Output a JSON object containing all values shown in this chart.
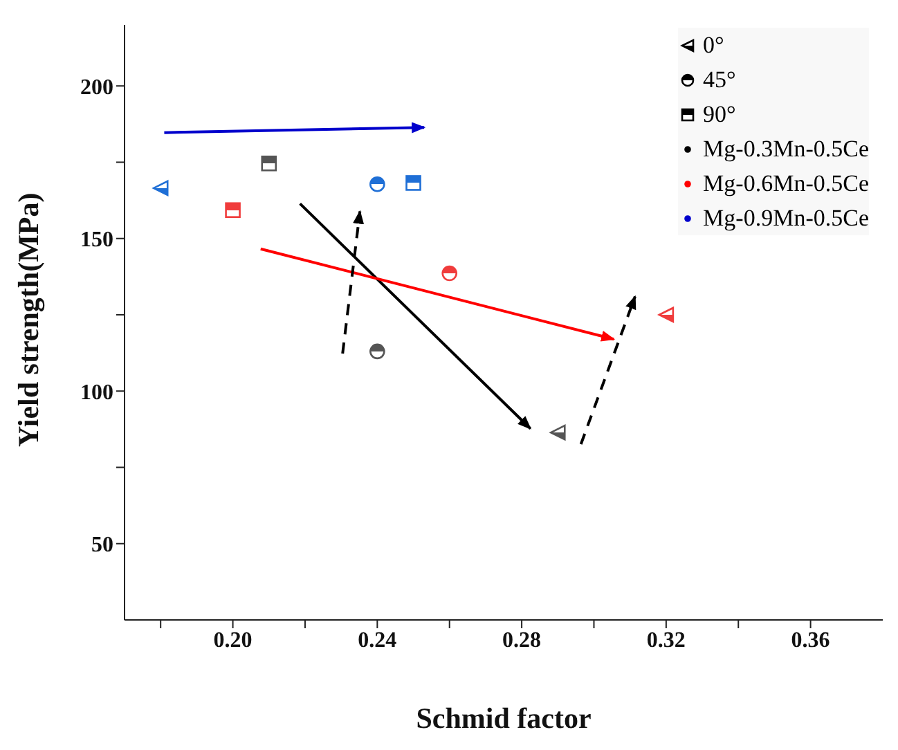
{
  "chart_data": {
    "type": "scatter",
    "xlabel": "Schmid factor",
    "ylabel": "Yield strength(MPa)",
    "xlim": [
      0.17,
      0.38
    ],
    "xticks": [
      {
        "value": 0.18,
        "label": null
      },
      {
        "value": 0.2,
        "label": "0.20"
      },
      {
        "value": 0.22,
        "label": null
      },
      {
        "value": 0.24,
        "label": "0.24"
      },
      {
        "value": 0.26,
        "label": null
      },
      {
        "value": 0.28,
        "label": "0.28"
      },
      {
        "value": 0.3,
        "label": null
      },
      {
        "value": 0.32,
        "label": "0.32"
      },
      {
        "value": 0.34,
        "label": null
      },
      {
        "value": 0.36,
        "label": "0.36"
      }
    ],
    "ylim": [
      25,
      220
    ],
    "yticks": [
      50,
      {
        "value": 75,
        "label": null
      },
      100,
      {
        "value": 125,
        "label": null
      },
      150,
      {
        "value": 175,
        "label": null
      },
      200
    ],
    "grid": false,
    "legend": "top right",
    "series": [
      {
        "name": "0°",
        "marker": "triangle",
        "color": "#000000",
        "x": [
          0.18,
          0.32,
          0.29
        ],
        "values": [
          166.5,
          125,
          86.4
        ],
        "colors": [
          "#1f6fd6",
          "#f03c3c",
          "#555555"
        ]
      },
      {
        "name": "45°",
        "marker": "circle",
        "color": "#000000",
        "x": [
          0.24,
          0.26,
          0.24
        ],
        "values": [
          113,
          138.6,
          167.8
        ],
        "colors": [
          "#555555",
          "#f03c3c",
          "#1f6fd6"
        ]
      },
      {
        "name": "90°",
        "marker": "square",
        "color": "#000000",
        "x": [
          0.21,
          0.2,
          0.25
        ],
        "values": [
          174.6,
          159.3,
          168.2
        ],
        "colors": [
          "#555555",
          "#f03c3c",
          "#1f6fd6"
        ]
      },
      {
        "name": "Mg-0.3Mn-0.5Ce",
        "type": "line",
        "color": "#000000",
        "x": [
          0.2186,
          0.2824
        ],
        "values": [
          161.4,
          87.7
        ]
      },
      {
        "name": "Mg-0.6Mn-0.5Ce",
        "type": "line",
        "color": "#ff0000",
        "x": [
          0.2077,
          0.3055
        ],
        "values": [
          146.6,
          117
        ]
      },
      {
        "name": "Mg-0.9Mn-0.5Ce",
        "type": "line",
        "color": "#0000cc",
        "x": [
          0.181,
          0.253
        ],
        "values": [
          184.7,
          186.4
        ]
      },
      {
        "type": "line",
        "line_style": "dashed",
        "color": "#000000",
        "x": [
          0.2304,
          0.2352
        ],
        "values": [
          112.3,
          158.9
        ]
      },
      {
        "type": "line",
        "line_style": "dashed",
        "color": "#000000",
        "x": [
          0.2964,
          0.3114
        ],
        "values": [
          82.6,
          131
        ]
      }
    ]
  }
}
